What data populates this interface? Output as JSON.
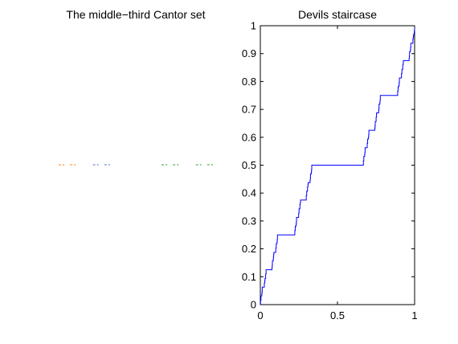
{
  "chart_data": [
    {
      "type": "line",
      "title": "The middle−third Cantor set",
      "axis_visible": false,
      "line_style": "dashed",
      "segment_y": 0.5,
      "segments": [
        {
          "x": [
            0.0,
            0.037037
          ],
          "color": "#ff7f0e"
        },
        {
          "x": [
            0.074074,
            0.111111
          ],
          "color": "#ff7f0e"
        },
        {
          "x": [
            0.222222,
            0.259259
          ],
          "color": "#5470c6"
        },
        {
          "x": [
            0.296296,
            0.333333
          ],
          "color": "#5470c6"
        },
        {
          "x": [
            0.666667,
            0.703704
          ],
          "color": "#2ca02c"
        },
        {
          "x": [
            0.740741,
            0.777778
          ],
          "color": "#2ca02c"
        },
        {
          "x": [
            0.888889,
            0.925926
          ],
          "color": "#2ca02c"
        },
        {
          "x": [
            0.962963,
            1.0
          ],
          "color": "#2ca02c"
        }
      ]
    },
    {
      "type": "line",
      "title": "Devils staircase",
      "xlim": [
        0,
        1
      ],
      "ylim": [
        0,
        1
      ],
      "xticks": [
        0,
        0.5,
        1
      ],
      "xtick_labels": [
        "0",
        "0.5",
        "1"
      ],
      "yticks": [
        0,
        0.1,
        0.2,
        0.3,
        0.4,
        0.5,
        0.6,
        0.7,
        0.8,
        0.9,
        1
      ],
      "ytick_labels": [
        "0",
        "0.1",
        "0.2",
        "0.3",
        "0.4",
        "0.5",
        "0.6",
        "0.7",
        "0.8",
        "0.9",
        "1"
      ],
      "grid": false,
      "series_color": "#0000ff",
      "description_of_curve": "Cantor function (devil's staircase), cantor recursion depth 6",
      "recursion_depth": 6
    }
  ]
}
